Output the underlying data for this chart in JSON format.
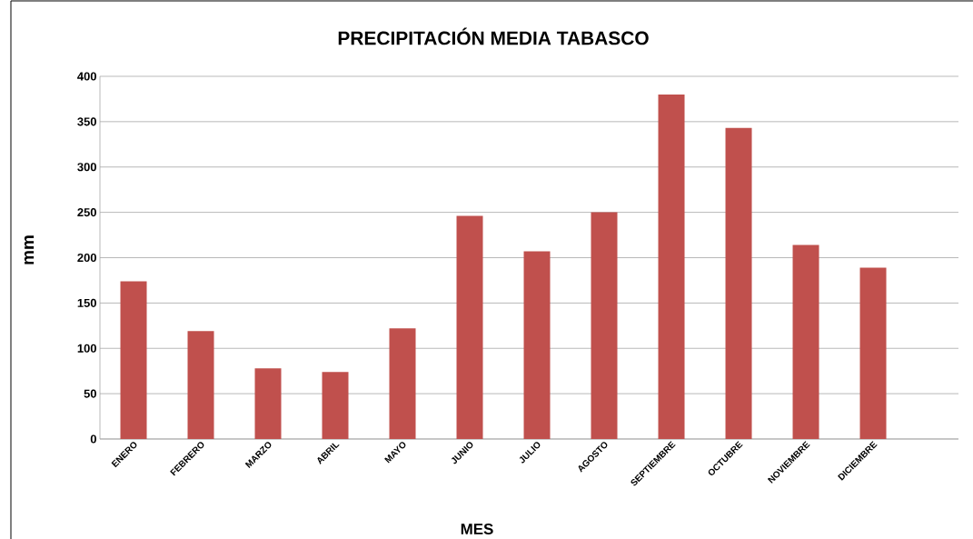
{
  "chart_data": {
    "type": "bar",
    "title": "PRECIPITACIÓN MEDIA TABASCO",
    "xlabel": "MES",
    "ylabel": "mm",
    "categories": [
      "ENERO",
      "FEBRERO",
      "MARZO",
      "ABRIL",
      "MAYO",
      "JUNIO",
      "JULIO",
      "AGOSTO",
      "SEPTIEMBRE",
      "OCTUBRE",
      "NOVIEMBRE",
      "DICIEMBRE"
    ],
    "values": [
      174,
      119,
      78,
      74,
      122,
      246,
      207,
      250,
      380,
      343,
      214,
      189
    ],
    "color": "#c0504d",
    "ylim": [
      0,
      400
    ],
    "yticks": [
      0,
      50,
      100,
      150,
      200,
      250,
      300,
      350,
      400
    ],
    "grid": "y"
  }
}
